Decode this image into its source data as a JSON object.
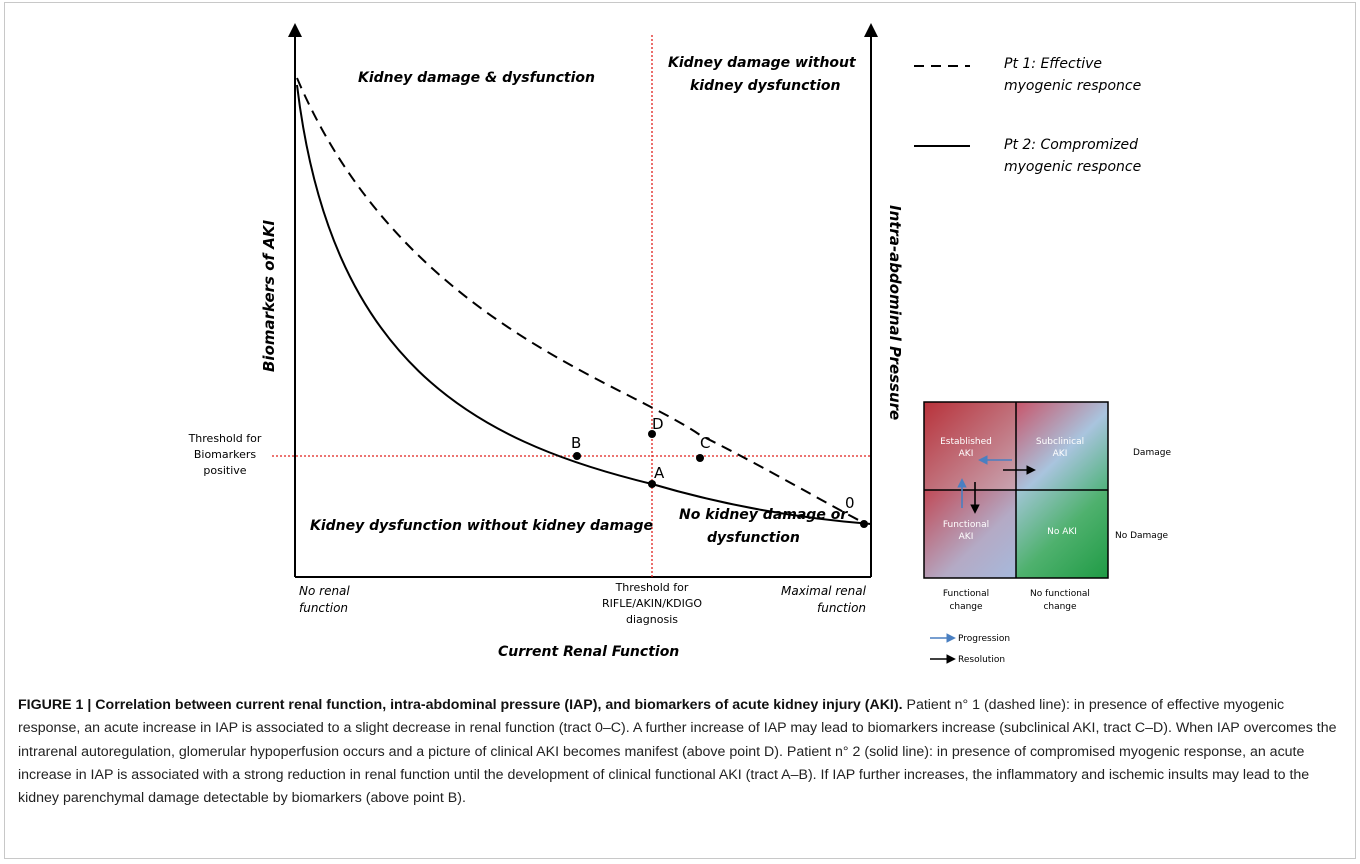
{
  "regions": {
    "top_left": "Kidney damage & dysfunction",
    "top_right_1": "Kidney damage without",
    "top_right_2": "kidney dysfunction",
    "bottom_left": "Kidney dysfunction without kidney damage",
    "bottom_right_1": "No kidney damage or",
    "bottom_right_2": "dysfunction"
  },
  "axes": {
    "y_left": "Biomarkers of AKI",
    "y_right": "Intra-abdominal Pressure",
    "x_title": "Current Renal Function",
    "x_min_1": "No renal",
    "x_min_2": "function",
    "x_max_1": "Maximal renal",
    "x_max_2": "function",
    "v_threshold_1": "Threshold for",
    "v_threshold_2": "RIFLE/AKIN/KDIGO",
    "v_threshold_3": "diagnosis",
    "h_threshold_1": "Threshold for",
    "h_threshold_2": "Biomarkers",
    "h_threshold_3": "positive"
  },
  "points": {
    "a": "A",
    "b": "B",
    "c": "C",
    "d": "D",
    "zero": "0"
  },
  "legend": {
    "pt1_1": "Pt 1: Effective",
    "pt1_2": "myogenic responce",
    "pt2_1": "Pt 2: Compromized",
    "pt2_2": "myogenic responce"
  },
  "matrix": {
    "tl_1": "Established",
    "tl_2": "AKI",
    "tr_1": "Subclinical",
    "tr_2": "AKI",
    "bl_1": "Functional",
    "bl_2": "AKI",
    "br": "No AKI",
    "row_damage": "Damage",
    "row_no_damage": "No Damage",
    "col_functional_1": "Functional",
    "col_functional_2": "change",
    "col_no_functional_1": "No functional",
    "col_no_functional_2": "change",
    "key_progression": "Progression",
    "key_resolution": "Resolution",
    "colors": {
      "progression": "#4a7fc1",
      "resolution": "#000000",
      "threshold": "#e0201c"
    }
  },
  "caption": {
    "title": "FIGURE 1 | Correlation between current renal function, intra-abdominal pressure (IAP), and biomarkers of acute kidney injury (AKI).",
    "body": " Patient n° 1 (dashed line): in presence of effective myogenic response, an acute increase in IAP is associated to a slight decrease in renal function (tract 0–C). A further increase of IAP may lead to biomarkers increase (subclinical AKI, tract C–D). When IAP overcomes the intrarenal autoregulation, glomerular hypoperfusion occurs and a picture of clinical AKI becomes manifest (above point D). Patient n° 2 (solid line): in presence of compromised myogenic response, an acute increase in IAP is associated with a strong reduction in renal function until the development of clinical functional AKI (tract A–B). If IAP further increases, the inflammatory and ischemic insults may lead to the kidney parenchymal damage detectable by biomarkers (above point B)."
  }
}
